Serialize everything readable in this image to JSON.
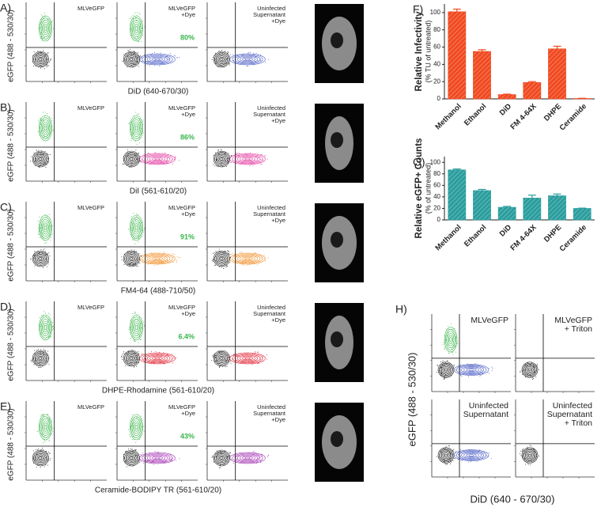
{
  "left_panels": [
    {
      "label": "A)",
      "y_label": "eGFP (488 - 530/30)",
      "x_label": "DiD (640-670/30)",
      "dye_color": "#4a5cc4",
      "plots": [
        {
          "lines": [
            "MLVeGFP"
          ]
        },
        {
          "lines": [
            "MLVeGFP",
            "+Dye"
          ],
          "percent": "80%"
        },
        {
          "lines": [
            "Uninfected",
            "Supernatant",
            "+Dye"
          ]
        }
      ]
    },
    {
      "label": "B)",
      "y_label": "eGFP (488 - 530/30)",
      "x_label": "DiI (561-610/20)",
      "dye_color": "#e0309a",
      "plots": [
        {
          "lines": [
            "MLVeGFP"
          ]
        },
        {
          "lines": [
            "MLVeGFP",
            "+Dye"
          ],
          "percent": "86%"
        },
        {
          "lines": [
            "Uninfected",
            "Supernatant",
            "+Dye"
          ]
        }
      ]
    },
    {
      "label": "C)",
      "y_label": "eGFP (488 - 530/30)",
      "x_label": "FM4-64 (488-710/50)",
      "dye_color": "#f08a20",
      "plots": [
        {
          "lines": [
            "MLVeGFP"
          ]
        },
        {
          "lines": [
            "MLVeGFP",
            "+Dye"
          ],
          "percent": "91%"
        },
        {
          "lines": [
            "Uninfected",
            "Supernatant",
            "+Dye"
          ]
        }
      ]
    },
    {
      "label": "D)",
      "y_label": "eGFP (488 - 530/30)",
      "x_label": "DHPE-Rhodamine (561-610/20)",
      "dye_color": "#e02030",
      "plots": [
        {
          "lines": [
            "MLVeGFP"
          ]
        },
        {
          "lines": [
            "MLVeGFP",
            "+Dye"
          ],
          "percent": "6.4%"
        },
        {
          "lines": [
            "Uninfected",
            "Supernatant",
            "+Dye"
          ]
        }
      ]
    },
    {
      "label": "E)",
      "y_label": "eGFP (488 - 530/30)",
      "x_label": "Ceramide-BODIPY TR (561-610/20)",
      "dye_color": "#a030b0",
      "plots": [
        {
          "lines": [
            "MLVeGFP"
          ]
        },
        {
          "lines": [
            "MLVeGFP",
            "+Dye"
          ],
          "percent": "43%"
        },
        {
          "lines": [
            "Uninfected",
            "Supernatant",
            "+Dye"
          ]
        }
      ]
    }
  ],
  "chart_data": [
    {
      "type": "bar",
      "label": "F)",
      "y_label": "Relative Infectivity",
      "y_sublabel": "(% TU of untreated)",
      "categories": [
        "Methanol",
        "Ethanol",
        "DiD",
        "FM 4-64X",
        "DHPE",
        "Ceramide"
      ],
      "values": [
        101,
        55,
        5,
        19,
        58,
        0.5
      ],
      "errors": [
        3,
        2,
        0.5,
        1,
        3,
        0.2
      ],
      "color": "#f04a20",
      "ylim": [
        0,
        110
      ],
      "yticks": [
        0,
        20,
        40,
        60,
        80,
        100
      ]
    },
    {
      "type": "bar",
      "label": "G)",
      "y_label": "Relative eGFP+ Counts",
      "y_sublabel": "(% of untreated)",
      "categories": [
        "Methanol",
        "Ethanol",
        "DiD",
        "FM 4-64X",
        "DHPE",
        "Ceramide"
      ],
      "values": [
        87,
        51,
        22,
        38,
        42,
        20
      ],
      "errors": [
        1.5,
        2,
        1.5,
        5,
        3,
        0.5
      ],
      "color": "#2a9d9d",
      "ylim": [
        0,
        110
      ],
      "yticks": [
        0,
        20,
        40,
        60,
        80,
        100
      ]
    }
  ],
  "panel_h": {
    "label": "H)",
    "y_label": "eGFP  (488 - 530/30)",
    "x_label": "DiD (640 - 670/30)",
    "dye_color": "#4a5cc4",
    "plots": [
      {
        "lines": [
          "MLVeGFP"
        ]
      },
      {
        "lines": [
          "MLVeGFP",
          "+ Triton"
        ]
      },
      {
        "lines": [
          "Uninfected",
          "Supernatant"
        ]
      },
      {
        "lines": [
          "Uninfected",
          "Supernatant",
          "+ Triton"
        ]
      }
    ]
  }
}
